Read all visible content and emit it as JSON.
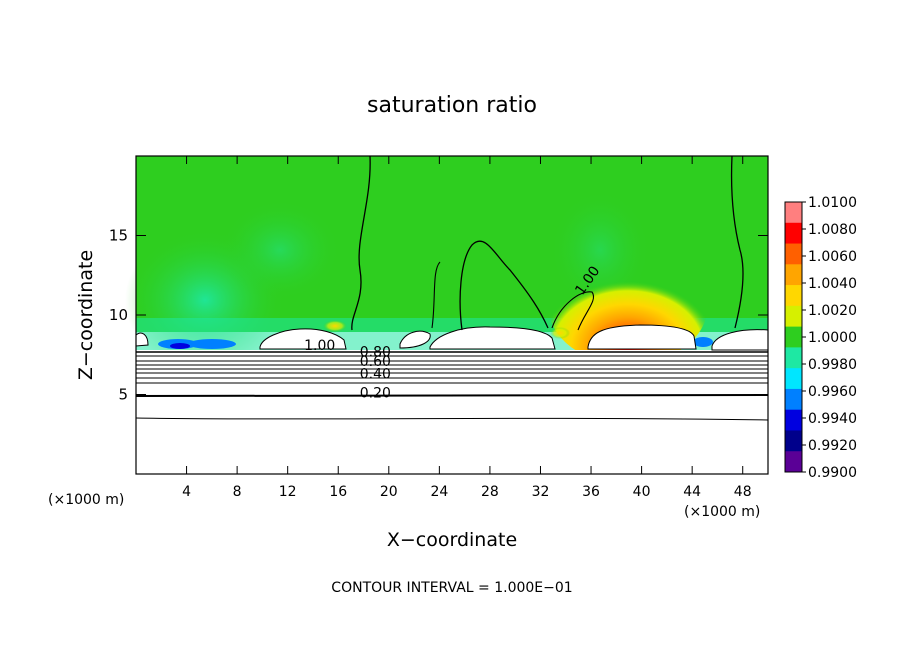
{
  "chart_data": {
    "type": "heatmap",
    "title": "saturation ratio",
    "xlabel": "X−coordinate",
    "ylabel": "Z−coordinate",
    "x_unit": "(×1000 m)",
    "y_unit": "",
    "xlim": [
      0,
      50
    ],
    "ylim": [
      0,
      20
    ],
    "x_ticks": [
      4,
      8,
      12,
      16,
      20,
      24,
      28,
      32,
      36,
      40,
      44,
      48
    ],
    "y_ticks": [
      5,
      10,
      15
    ],
    "footer": "CONTOUR INTERVAL = 1.000E−01",
    "colorbar": {
      "labels": [
        "1.0100",
        "1.0080",
        "1.0060",
        "1.0040",
        "1.0020",
        "1.0000",
        "0.9980",
        "0.9960",
        "0.9940",
        "0.9920",
        "0.9900"
      ],
      "colors": [
        "#ff7f7f",
        "#ff0000",
        "#ff6000",
        "#ffa500",
        "#ffd700",
        "#d6f000",
        "#2ece1f",
        "#1ee8a3",
        "#00e6ff",
        "#0080ff",
        "#0000e0",
        "#00008b",
        "#5a0096"
      ]
    },
    "contour_labels": [
      {
        "text": "1.00",
        "x": 13.3,
        "z": 7.8
      },
      {
        "text": "0.80",
        "x": 17.7,
        "z": 7.4
      },
      {
        "text": "0.60",
        "x": 17.7,
        "z": 6.8
      },
      {
        "text": "0.40",
        "x": 17.7,
        "z": 6.0
      },
      {
        "text": "0.20",
        "x": 17.7,
        "z": 4.8
      },
      {
        "text": "1.00",
        "x": 35.3,
        "z": 11.2
      }
    ]
  }
}
